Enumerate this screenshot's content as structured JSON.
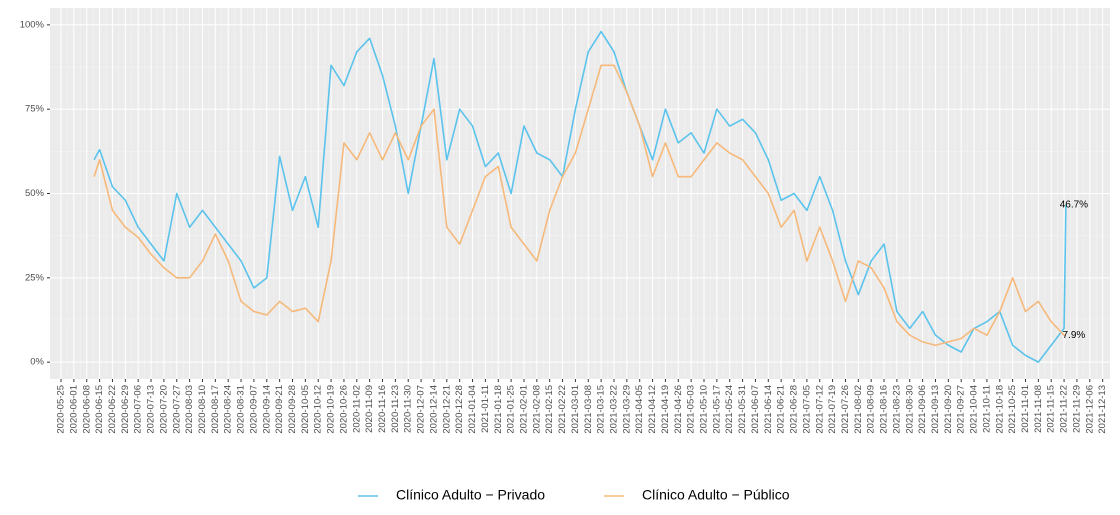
{
  "chart_data": {
    "type": "line",
    "x": [
      "2020-06-12",
      "2020-06-15",
      "2020-06-22",
      "2020-06-29",
      "2020-07-06",
      "2020-07-13",
      "2020-07-20",
      "2020-07-27",
      "2020-08-03",
      "2020-08-10",
      "2020-08-17",
      "2020-08-24",
      "2020-08-31",
      "2020-09-07",
      "2020-09-14",
      "2020-09-21",
      "2020-09-28",
      "2020-10-05",
      "2020-10-12",
      "2020-10-19",
      "2020-10-26",
      "2020-11-02",
      "2020-11-09",
      "2020-11-16",
      "2020-11-23",
      "2020-11-30",
      "2020-12-07",
      "2020-12-14",
      "2020-12-21",
      "2020-12-28",
      "2021-01-04",
      "2021-01-11",
      "2021-01-18",
      "2021-01-25",
      "2021-02-01",
      "2021-02-08",
      "2021-02-15",
      "2021-02-22",
      "2021-03-01",
      "2021-03-08",
      "2021-03-15",
      "2021-03-22",
      "2021-03-29",
      "2021-04-05",
      "2021-04-12",
      "2021-04-19",
      "2021-04-26",
      "2021-05-03",
      "2021-05-10",
      "2021-05-17",
      "2021-05-24",
      "2021-05-31",
      "2021-06-07",
      "2021-06-14",
      "2021-06-21",
      "2021-06-28",
      "2021-07-05",
      "2021-07-12",
      "2021-07-19",
      "2021-07-26",
      "2021-08-02",
      "2021-08-09",
      "2021-08-16",
      "2021-08-23",
      "2021-08-30",
      "2021-09-06",
      "2021-09-13",
      "2021-09-20",
      "2021-09-27",
      "2021-10-04",
      "2021-10-11",
      "2021-10-18",
      "2021-10-25",
      "2021-11-01",
      "2021-11-08",
      "2021-11-15",
      "2021-11-22",
      "2021-11-23"
    ],
    "series": [
      {
        "name": "Clínico Adulto − Privado",
        "color": "#5bc3ec",
        "values": [
          60,
          63,
          52,
          48,
          40,
          35,
          30,
          50,
          40,
          45,
          40,
          35,
          30,
          22,
          25,
          61,
          45,
          55,
          40,
          88,
          82,
          92,
          96,
          85,
          70,
          50,
          70,
          90,
          60,
          75,
          70,
          58,
          62,
          50,
          70,
          62,
          60,
          55,
          75,
          92,
          98,
          92,
          80,
          70,
          60,
          75,
          65,
          68,
          62,
          75,
          70,
          72,
          68,
          60,
          48,
          50,
          45,
          55,
          45,
          30,
          20,
          30,
          35,
          15,
          10,
          15,
          8,
          5,
          3,
          10,
          12,
          15,
          5,
          2,
          0,
          5,
          10,
          46.7
        ]
      },
      {
        "name": "Clínico Adulto − Público",
        "color": "#f6b97b",
        "values": [
          55,
          60,
          45,
          40,
          37,
          32,
          28,
          25,
          25,
          30,
          38,
          30,
          18,
          15,
          14,
          18,
          15,
          16,
          12,
          30,
          65,
          60,
          68,
          60,
          68,
          60,
          70,
          75,
          40,
          35,
          45,
          55,
          58,
          40,
          35,
          30,
          45,
          55,
          62,
          75,
          88,
          88,
          80,
          70,
          55,
          65,
          55,
          55,
          60,
          65,
          62,
          60,
          55,
          50,
          40,
          45,
          30,
          40,
          30,
          18,
          30,
          28,
          22,
          12,
          8,
          6,
          5,
          6,
          7,
          10,
          8,
          15,
          25,
          15,
          18,
          12,
          8,
          7.9
        ]
      }
    ],
    "annotations": [
      {
        "label": "46.7%",
        "x": "2021-11-23",
        "y": 46.7
      },
      {
        "label": "7.9%",
        "x": "2021-11-23",
        "y": 7.9
      }
    ],
    "xlim": [
      "2020-05-19",
      "2021-12-17"
    ],
    "xticks": [
      "2020-05-25",
      "2020-06-01",
      "2020-06-08",
      "2020-06-15",
      "2020-06-22",
      "2020-06-29",
      "2020-07-06",
      "2020-07-13",
      "2020-07-20",
      "2020-07-27",
      "2020-08-03",
      "2020-08-10",
      "2020-08-17",
      "2020-08-24",
      "2020-08-31",
      "2020-09-07",
      "2020-09-14",
      "2020-09-21",
      "2020-09-28",
      "2020-10-05",
      "2020-10-12",
      "2020-10-19",
      "2020-10-26",
      "2020-11-02",
      "2020-11-09",
      "2020-11-16",
      "2020-11-23",
      "2020-11-30",
      "2020-12-07",
      "2020-12-14",
      "2020-12-21",
      "2020-12-28",
      "2021-01-04",
      "2021-01-11",
      "2021-01-18",
      "2021-01-25",
      "2021-02-01",
      "2021-02-08",
      "2021-02-15",
      "2021-02-22",
      "2021-03-01",
      "2021-03-08",
      "2021-03-15",
      "2021-03-22",
      "2021-03-29",
      "2021-04-05",
      "2021-04-12",
      "2021-04-19",
      "2021-04-26",
      "2021-05-03",
      "2021-05-10",
      "2021-05-17",
      "2021-05-24",
      "2021-05-31",
      "2021-06-07",
      "2021-06-14",
      "2021-06-21",
      "2021-06-28",
      "2021-07-05",
      "2021-07-12",
      "2021-07-19",
      "2021-07-26",
      "2021-08-02",
      "2021-08-09",
      "2021-08-16",
      "2021-08-23",
      "2021-08-30",
      "2021-09-06",
      "2021-09-13",
      "2021-09-20",
      "2021-09-27",
      "2021-10-04",
      "2021-10-11",
      "2021-10-18",
      "2021-10-25",
      "2021-11-01",
      "2021-11-08",
      "2021-11-15",
      "2021-11-22",
      "2021-11-29",
      "2021-12-06",
      "2021-12-13"
    ],
    "ylim": [
      -5,
      105
    ],
    "yticks": [
      {
        "value": 0,
        "label": "0%"
      },
      {
        "value": 25,
        "label": "25%"
      },
      {
        "value": 50,
        "label": "50%"
      },
      {
        "value": 75,
        "label": "75%"
      },
      {
        "value": 100,
        "label": "100%"
      }
    ],
    "grid": true,
    "legend": "bottom"
  }
}
